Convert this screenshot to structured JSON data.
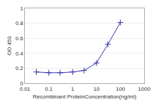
{
  "chart_data": {
    "type": "line",
    "x": [
      0.03,
      0.1,
      0.3,
      1,
      3,
      10,
      30,
      100
    ],
    "values": [
      0.15,
      0.14,
      0.14,
      0.15,
      0.17,
      0.27,
      0.52,
      0.81
    ],
    "color": "#3333AA",
    "marker": "+",
    "xlabel": "Recombinant ProteinConcentration(ng/ml)",
    "ylabel": "OD 450",
    "log": "x",
    "xlim": [
      0.01,
      1000
    ],
    "xticks": [
      0.01,
      0.1,
      1,
      10,
      100,
      1000
    ],
    "ylim": [
      0,
      1
    ],
    "yticks": [
      0,
      0.2,
      0.4,
      0.6,
      0.8,
      1
    ],
    "grid": "y"
  }
}
